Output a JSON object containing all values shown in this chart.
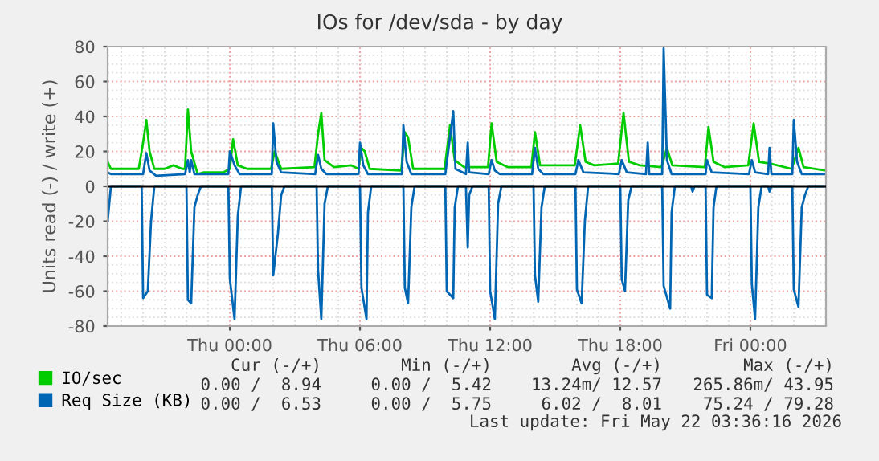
{
  "chart_data": {
    "type": "line",
    "title": "IOs for /dev/sda - by day",
    "ylabel": "Units read (-) / write (+)",
    "xlim": [
      "2026-05-20T18:22",
      "2026-05-22T03:29"
    ],
    "xticks": [
      {
        "value": "2026-05-21T00:00",
        "label": "Thu 00:00"
      },
      {
        "value": "2026-05-21T06:00",
        "label": "Thu 06:00"
      },
      {
        "value": "2026-05-21T12:00",
        "label": "Thu 12:00"
      },
      {
        "value": "2026-05-21T18:00",
        "label": "Thu 18:00"
      },
      {
        "value": "2026-05-22T00:00",
        "label": "Fri 00:00"
      }
    ],
    "ylim": [
      -80,
      80
    ],
    "yticks": [
      -80,
      -60,
      -40,
      -20,
      0,
      20,
      40,
      60,
      80
    ],
    "grid": true,
    "legend": "bottom",
    "ref_lines": [
      {
        "axis": "y",
        "value": 0,
        "color": "#000000"
      }
    ],
    "series": [
      {
        "name": "IO/sec",
        "color": "#00cc00",
        "x": [
          "2026-05-20T18:22",
          "2026-05-20T18:31",
          "2026-05-20T19:48",
          "2026-05-20T20:00",
          "2026-05-20T20:09",
          "2026-05-20T20:18",
          "2026-05-20T20:31",
          "2026-05-20T21:00",
          "2026-05-20T21:24",
          "2026-05-20T21:48",
          "2026-05-20T21:56",
          "2026-05-20T22:04",
          "2026-05-20T22:13",
          "2026-05-20T22:31",
          "2026-05-20T22:48",
          "2026-05-20T23:42",
          "2026-05-21T00:00",
          "2026-05-21T00:09",
          "2026-05-21T00:22",
          "2026-05-21T00:48",
          "2026-05-21T01:54",
          "2026-05-21T02:04",
          "2026-05-21T02:22",
          "2026-05-21T03:54",
          "2026-05-21T04:04",
          "2026-05-21T04:13",
          "2026-05-21T04:22",
          "2026-05-21T04:48",
          "2026-05-21T05:36",
          "2026-05-21T05:56",
          "2026-05-21T06:04",
          "2026-05-21T06:13",
          "2026-05-21T06:27",
          "2026-05-21T07:54",
          "2026-05-21T08:04",
          "2026-05-21T08:13",
          "2026-05-21T08:27",
          "2026-05-21T09:54",
          "2026-05-21T10:09",
          "2026-05-21T10:22",
          "2026-05-21T10:48",
          "2026-05-21T11:54",
          "2026-05-21T12:04",
          "2026-05-21T12:18",
          "2026-05-21T12:48",
          "2026-05-21T13:54",
          "2026-05-21T14:04",
          "2026-05-21T14:18",
          "2026-05-21T15:54",
          "2026-05-21T16:09",
          "2026-05-21T16:24",
          "2026-05-21T16:48",
          "2026-05-21T17:54",
          "2026-05-21T18:09",
          "2026-05-21T18:24",
          "2026-05-21T18:54",
          "2026-05-21T19:54",
          "2026-05-21T20:09",
          "2026-05-21T20:24",
          "2026-05-21T21:54",
          "2026-05-21T22:04",
          "2026-05-21T22:18",
          "2026-05-21T22:48",
          "2026-05-21T23:54",
          "2026-05-22T00:09",
          "2026-05-22T00:24",
          "2026-05-22T00:54",
          "2026-05-22T01:54",
          "2026-05-22T02:13",
          "2026-05-22T02:27",
          "2026-05-22T03:29"
        ],
        "values": [
          14,
          10,
          10,
          25,
          38,
          20,
          10,
          10,
          12,
          10,
          10,
          44,
          20,
          7,
          8,
          8,
          10,
          27,
          12,
          10,
          10,
          20,
          10,
          11,
          30,
          42,
          15,
          11,
          12,
          10,
          22,
          20,
          10,
          9,
          31,
          28,
          10,
          10,
          35,
          15,
          11,
          11,
          36,
          14,
          11,
          11,
          31,
          12,
          12,
          35,
          14,
          12,
          13,
          42,
          14,
          12,
          11,
          22,
          12,
          11,
          34,
          14,
          11,
          12,
          36,
          14,
          13,
          10,
          22,
          11,
          9
        ]
      },
      {
        "name": "Req Size (KB)",
        "color": "#0066b3",
        "x": [
          "2026-05-20T18:22",
          "2026-05-20T18:31",
          "2026-05-20T20:00",
          "2026-05-20T20:09",
          "2026-05-20T20:18",
          "2026-05-20T20:36",
          "2026-05-20T21:56",
          "2026-05-20T22:04",
          "2026-05-20T22:09",
          "2026-05-20T22:13",
          "2026-05-20T22:22",
          "2026-05-20T23:56",
          "2026-05-21T00:00",
          "2026-05-21T00:13",
          "2026-05-21T00:27",
          "2026-05-21T01:56",
          "2026-05-21T02:00",
          "2026-05-21T02:09",
          "2026-05-21T02:22",
          "2026-05-21T03:56",
          "2026-05-21T04:04",
          "2026-05-21T04:13",
          "2026-05-21T04:27",
          "2026-05-21T05:56",
          "2026-05-21T06:00",
          "2026-05-21T06:09",
          "2026-05-21T06:22",
          "2026-05-21T07:56",
          "2026-05-21T08:00",
          "2026-05-21T08:09",
          "2026-05-21T08:22",
          "2026-05-21T09:56",
          "2026-05-21T10:18",
          "2026-05-21T10:24",
          "2026-05-21T10:53",
          "2026-05-21T10:58",
          "2026-05-21T11:02",
          "2026-05-21T11:56",
          "2026-05-21T12:04",
          "2026-05-21T12:13",
          "2026-05-21T12:27",
          "2026-05-21T13:56",
          "2026-05-21T14:04",
          "2026-05-21T14:13",
          "2026-05-21T14:27",
          "2026-05-21T15:56",
          "2026-05-21T16:04",
          "2026-05-21T16:18",
          "2026-05-21T17:56",
          "2026-05-21T18:04",
          "2026-05-21T18:18",
          "2026-05-21T19:11",
          "2026-05-21T19:16",
          "2026-05-21T19:20",
          "2026-05-21T19:56",
          "2026-05-21T20:00",
          "2026-05-21T20:09",
          "2026-05-21T20:22",
          "2026-05-21T21:56",
          "2026-05-21T22:00",
          "2026-05-21T22:13",
          "2026-05-21T23:56",
          "2026-05-22T00:04",
          "2026-05-22T00:13",
          "2026-05-22T00:49",
          "2026-05-22T00:53",
          "2026-05-22T00:58",
          "2026-05-22T01:56",
          "2026-05-22T02:00",
          "2026-05-22T02:09",
          "2026-05-22T02:22",
          "2026-05-22T03:29"
        ],
        "values": [
          8,
          7,
          7,
          19,
          9,
          6,
          7,
          15,
          8,
          15,
          7,
          7,
          20,
          12,
          7,
          7,
          36,
          14,
          8,
          7,
          18,
          10,
          7,
          7,
          25,
          12,
          7,
          7,
          35,
          14,
          7,
          7,
          43,
          10,
          7,
          25,
          8,
          7,
          15,
          9,
          7,
          7,
          22,
          10,
          7,
          7,
          15,
          8,
          7,
          15,
          8,
          7,
          25,
          7,
          7,
          79,
          15,
          7,
          7,
          15,
          8,
          7,
          15,
          8,
          7,
          22,
          7,
          7,
          38,
          14,
          7,
          7
        ]
      },
      {
        "color": "#0066b3",
        "x": [
          "2026-05-20T18:22",
          "2026-05-20T18:31",
          "2026-05-20T19:56",
          "2026-05-20T20:00",
          "2026-05-20T20:13",
          "2026-05-20T20:22",
          "2026-05-20T20:31",
          "2026-05-20T22:00",
          "2026-05-20T22:04",
          "2026-05-20T22:13",
          "2026-05-20T22:22",
          "2026-05-20T22:31",
          "2026-05-20T22:40",
          "2026-05-20T23:56",
          "2026-05-21T00:00",
          "2026-05-21T00:13",
          "2026-05-21T00:22",
          "2026-05-21T00:31",
          "2026-05-21T01:56",
          "2026-05-21T02:00",
          "2026-05-21T02:13",
          "2026-05-21T02:22",
          "2026-05-21T02:31",
          "2026-05-21T04:00",
          "2026-05-21T04:04",
          "2026-05-21T04:13",
          "2026-05-21T04:22",
          "2026-05-21T04:31",
          "2026-05-21T06:00",
          "2026-05-21T06:04",
          "2026-05-21T06:18",
          "2026-05-21T06:22",
          "2026-05-21T06:31",
          "2026-05-21T08:00",
          "2026-05-21T08:04",
          "2026-05-21T08:13",
          "2026-05-21T08:22",
          "2026-05-21T08:31",
          "2026-05-21T09:56",
          "2026-05-21T10:00",
          "2026-05-21T10:18",
          "2026-05-21T10:22",
          "2026-05-21T10:31",
          "2026-05-21T10:53",
          "2026-05-21T10:58",
          "2026-05-21T11:02",
          "2026-05-21T11:11",
          "2026-05-21T11:56",
          "2026-05-21T12:00",
          "2026-05-21T12:13",
          "2026-05-21T12:22",
          "2026-05-21T12:31",
          "2026-05-21T14:00",
          "2026-05-21T14:04",
          "2026-05-21T14:13",
          "2026-05-21T14:22",
          "2026-05-21T14:31",
          "2026-05-21T15:56",
          "2026-05-21T16:00",
          "2026-05-21T16:13",
          "2026-05-21T16:22",
          "2026-05-21T16:31",
          "2026-05-21T18:00",
          "2026-05-21T18:04",
          "2026-05-21T18:13",
          "2026-05-21T18:22",
          "2026-05-21T18:31",
          "2026-05-21T19:56",
          "2026-05-21T20:00",
          "2026-05-21T20:18",
          "2026-05-21T20:22",
          "2026-05-21T20:31",
          "2026-05-21T21:16",
          "2026-05-21T21:20",
          "2026-05-21T21:25",
          "2026-05-21T21:56",
          "2026-05-21T22:00",
          "2026-05-21T22:13",
          "2026-05-21T22:18",
          "2026-05-21T22:26",
          "2026-05-22T00:00",
          "2026-05-22T00:04",
          "2026-05-22T00:13",
          "2026-05-22T00:22",
          "2026-05-22T00:31",
          "2026-05-22T00:49",
          "2026-05-22T00:53",
          "2026-05-22T00:58",
          "2026-05-22T01:56",
          "2026-05-22T02:00",
          "2026-05-22T02:13",
          "2026-05-22T02:22",
          "2026-05-22T02:31",
          "2026-05-22T02:40",
          "2026-05-22T03:29"
        ],
        "values": [
          -20,
          0,
          0,
          -64,
          -60,
          -20,
          0,
          0,
          -65,
          -67,
          -12,
          -5,
          0,
          0,
          -53,
          -76,
          -17,
          0,
          0,
          -51,
          -27,
          -5,
          0,
          0,
          -48,
          -76,
          -10,
          0,
          0,
          -58,
          -76,
          -15,
          0,
          0,
          -58,
          -67,
          -12,
          0,
          0,
          -60,
          -64,
          -12,
          0,
          0,
          -35,
          -5,
          0,
          0,
          -60,
          -76,
          -10,
          0,
          0,
          -51,
          -66,
          -12,
          0,
          0,
          -59,
          -67,
          -20,
          0,
          0,
          -53,
          -60,
          -8,
          0,
          0,
          -57,
          -70,
          -15,
          0,
          0,
          -3,
          0,
          0,
          -62,
          -64,
          -12,
          0,
          0,
          -56,
          -76,
          -12,
          0,
          0,
          -3,
          0,
          0,
          -59,
          -69,
          -12,
          -5,
          0,
          0
        ]
      }
    ],
    "annotations": [
      "Cur (-/+)",
      "Min (-/+)",
      "Avg (-/+)",
      "Max (-/+)",
      "0.00 /  8.94",
      "0.00 /  5.42",
      "13.24m/ 12.57",
      "265.86m/ 43.95",
      "0.00 /  6.53",
      "0.00 /  5.75",
      "6.02 /  8.01",
      "75.24 / 79.28",
      "Last update: Fri May 22 03:36:16 2026"
    ]
  }
}
